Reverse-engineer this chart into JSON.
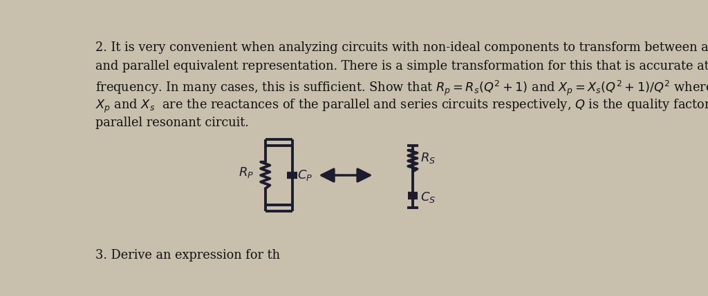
{
  "bg_color": "#c9bfad",
  "text_color": "#111111",
  "title_text": [
    "2. It is very convenient when analyzing circuits with non-ideal components to transform between a series",
    "and parallel equivalent representation. There is a simple transformation for this that is accurate at a single",
    "frequency. In many cases, this is sufficient. Show that $R_p = R_s(Q^2+1)$ and $X_p = X_s(Q^2+1)/Q^2$ where",
    "$X_p$ and $X_s$  are the reactances of the parallel and series circuits respectively, $Q$ is the quality factor of",
    "parallel resonant circuit."
  ],
  "bottom_text": "3. Derive an expression for th",
  "font_size_body": 12.8,
  "circuit_lw": 2.8,
  "component_color": "#1c1c2e"
}
